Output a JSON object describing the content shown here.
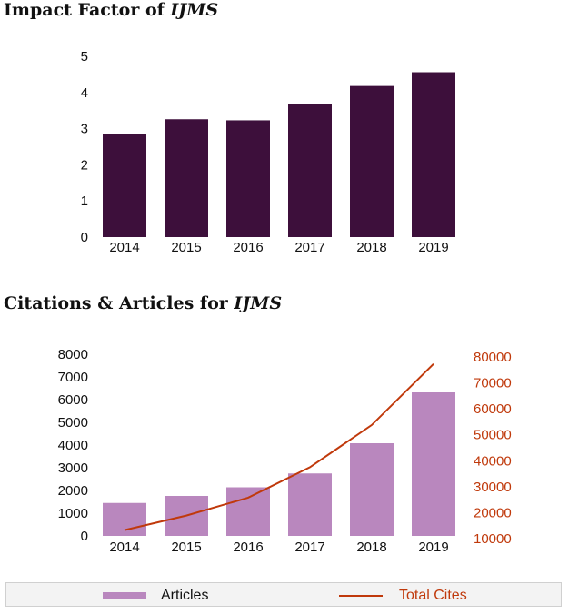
{
  "colors": {
    "impact_bar": "#3d0f3b",
    "articles_bar": "#b987be",
    "cites_line": "#c0390b"
  },
  "titles": {
    "impact_prefix": "Impact Factor of ",
    "impact_journal": "IJMS",
    "citations_prefix": "Citations & Articles for ",
    "citations_journal": "IJMS"
  },
  "legend": {
    "articles": "Articles",
    "total_cites": "Total Cites"
  },
  "chart_data": [
    {
      "type": "bar",
      "title": "Impact Factor of IJMS",
      "categories": [
        "2014",
        "2015",
        "2016",
        "2017",
        "2018",
        "2019"
      ],
      "values": [
        2.86,
        3.26,
        3.23,
        3.69,
        4.18,
        4.56
      ],
      "ylim": [
        0,
        5
      ],
      "yticks": [
        "0",
        "1",
        "2",
        "3",
        "4",
        "5"
      ],
      "grid": false,
      "xlabel": "",
      "ylabel": ""
    },
    {
      "type": "bar+line",
      "title": "Citations & Articles for IJMS",
      "categories": [
        "2014",
        "2015",
        "2016",
        "2017",
        "2018",
        "2019"
      ],
      "series": [
        {
          "name": "Articles",
          "type": "bar",
          "axis": "left",
          "values": [
            1450,
            1760,
            2140,
            2750,
            4080,
            6320
          ]
        },
        {
          "name": "Total Cites",
          "type": "line",
          "axis": "right",
          "values": [
            13300,
            18900,
            25800,
            37500,
            53800,
            77300
          ]
        }
      ],
      "ylim_left": [
        0,
        8000
      ],
      "yticks_left": [
        "0",
        "1000",
        "2000",
        "3000",
        "4000",
        "5000",
        "6000",
        "7000",
        "8000"
      ],
      "ylim_right": [
        10000,
        80000
      ],
      "yticks_right": [
        "10000",
        "20000",
        "30000",
        "40000",
        "50000",
        "60000",
        "70000",
        "80000"
      ],
      "legend_position": "bottom",
      "grid": false
    }
  ]
}
